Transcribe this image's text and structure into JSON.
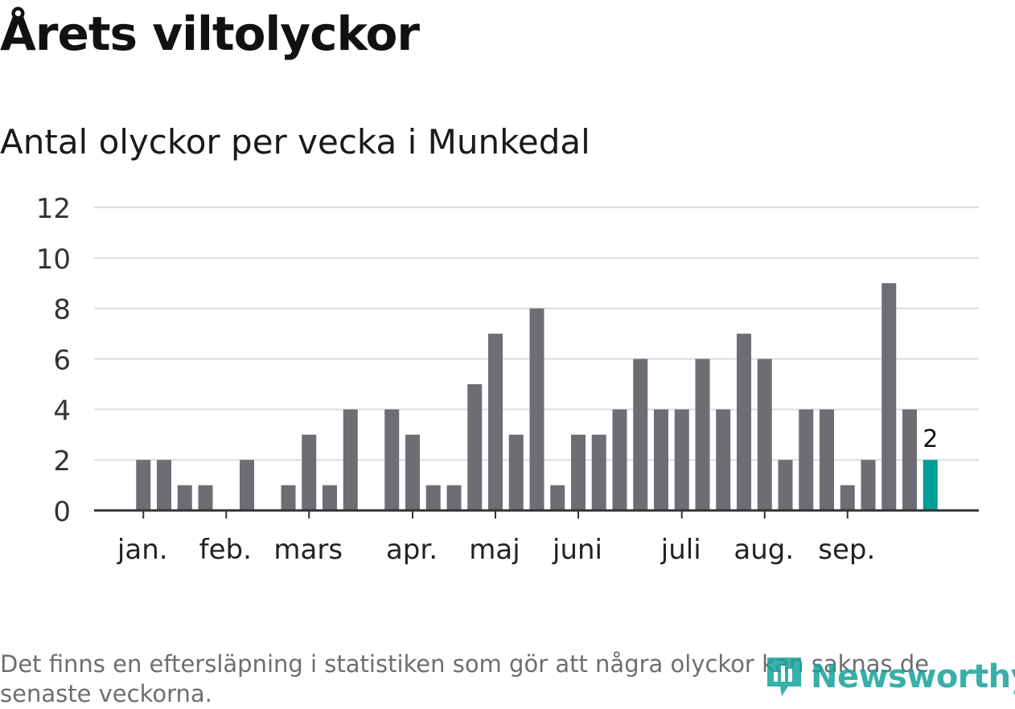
{
  "title": "Årets viltolyckor",
  "subtitle": "Antal olyckor per vecka i Munkedal",
  "footnote": "Det finns en eftersläpning i statistiken som gör att några olyckor kan saknas de senaste veckorna.",
  "logo": {
    "text": "Newsworthy",
    "icon": "newsworthy-logo-icon"
  },
  "colors": {
    "bar": "#6e6d73",
    "highlight": "#009e96",
    "grid": "#dddddd",
    "axis": "#333333",
    "logo": "#16a29b"
  },
  "chart_data": {
    "type": "bar",
    "title": "Antal olyckor per vecka i Munkedal",
    "xlabel": "",
    "ylabel": "",
    "ylim": [
      0,
      12
    ],
    "yticks": [
      0,
      2,
      4,
      6,
      8,
      10,
      12
    ],
    "grid": true,
    "week_slots": 39,
    "series": [
      {
        "values": [
          null,
          2,
          2,
          1,
          1,
          0,
          2,
          0,
          1,
          3,
          1,
          4,
          0,
          4,
          3,
          1,
          1,
          5,
          7,
          3,
          8,
          1,
          3,
          3,
          4,
          6,
          4,
          4,
          6,
          4,
          7,
          6,
          2,
          4,
          4,
          1,
          2,
          9,
          4,
          2
        ]
      }
    ],
    "highlight_index": 39,
    "highlight_label": "2",
    "month_labels": [
      {
        "label": "jan.",
        "week": 1
      },
      {
        "label": "feb.",
        "week": 5
      },
      {
        "label": "mars",
        "week": 9
      },
      {
        "label": "apr.",
        "week": 14
      },
      {
        "label": "maj",
        "week": 18
      },
      {
        "label": "juni",
        "week": 22
      },
      {
        "label": "juli",
        "week": 27
      },
      {
        "label": "aug.",
        "week": 31
      },
      {
        "label": "sep.",
        "week": 35
      }
    ]
  }
}
